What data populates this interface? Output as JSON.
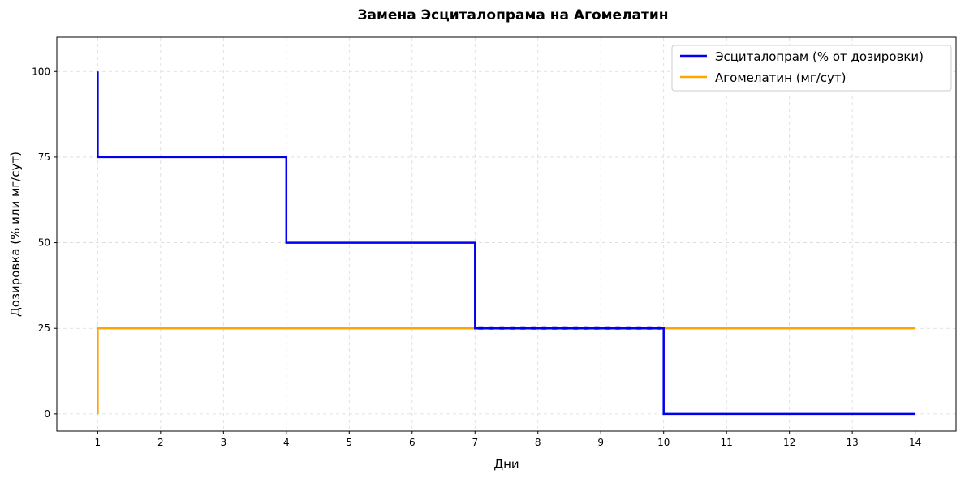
{
  "chart_data": {
    "type": "line",
    "step": true,
    "title": "Замена Эсциталопрама на Агомелатин",
    "xlabel": "Дни",
    "ylabel": "Дозировка (% или мг/сут)",
    "xlim": [
      0.35,
      14.65
    ],
    "ylim": [
      -5,
      110
    ],
    "xticks": [
      1,
      2,
      3,
      4,
      5,
      6,
      7,
      8,
      9,
      10,
      11,
      12,
      13,
      14
    ],
    "yticks": [
      0,
      25,
      50,
      75,
      100
    ],
    "grid": true,
    "legend_position": "top-right",
    "series": [
      {
        "name": "Эсциталопрам (% от дозировки)",
        "color": "#0000ee",
        "points": [
          [
            1,
            100
          ],
          [
            1,
            75
          ],
          [
            4,
            75
          ],
          [
            4,
            50
          ],
          [
            7,
            50
          ],
          [
            7,
            25
          ],
          [
            10,
            25
          ],
          [
            10,
            0
          ],
          [
            14,
            0
          ]
        ],
        "dashed_segment": [
          7,
          10
        ]
      },
      {
        "name": "Агомелатин (мг/сут)",
        "color": "#ffa500",
        "points": [
          [
            1,
            0
          ],
          [
            1,
            25
          ],
          [
            14,
            25
          ]
        ]
      }
    ]
  }
}
